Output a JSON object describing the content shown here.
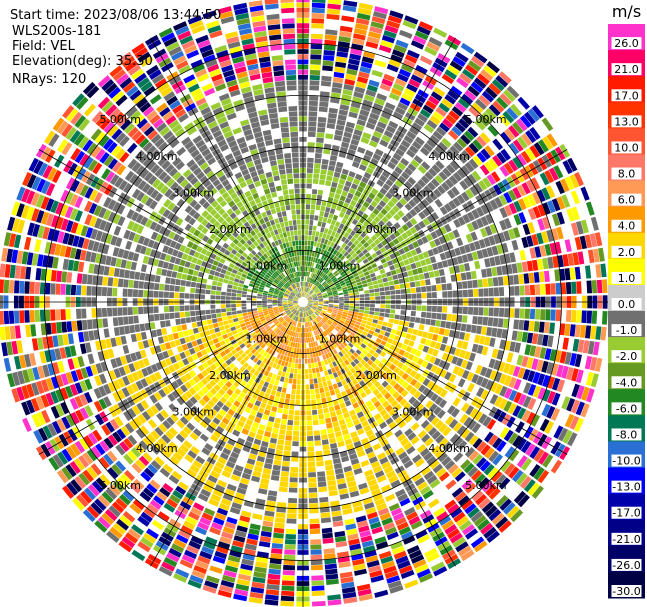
{
  "header": {
    "start_time": "Start time: 2023/08/06 13:44:50",
    "instrument": "WLS200s-181",
    "field": "Field: VEL",
    "elevation": "Elevation(deg): 35.30",
    "nrays": "NRays: 120"
  },
  "chart_data": {
    "type": "heatmap",
    "subtype": "polar-ppi",
    "field": "VEL",
    "units": "m/s",
    "elevation_deg": 35.3,
    "n_rays": 120,
    "range_rings_km": [
      1.0,
      2.0,
      3.0,
      4.0,
      5.0
    ],
    "max_range_km": 5.9,
    "ring_labels": [
      "1.00km",
      "2.00km",
      "3.00km",
      "4.00km",
      "5.00km"
    ],
    "colorbar": {
      "unit_label": "m/s",
      "tick_labels": [
        "26.0",
        "21.0",
        "17.0",
        "13.0",
        "10.0",
        "8.0",
        "6.0",
        "4.0",
        "2.0",
        "1.0",
        "0.0",
        "-1.0",
        "-2.0",
        "-4.0",
        "-6.0",
        "-8.0",
        "-10.0",
        "-13.0",
        "-17.0",
        "-21.0",
        "-26.0",
        "-30.0"
      ],
      "bin_colors": [
        "#ff33cc",
        "#ff0066",
        "#ff1a00",
        "#ff3300",
        "#ff5533",
        "#ff7766",
        "#ff9955",
        "#ff9900",
        "#ffd700",
        "#ffff00",
        "#cccccc",
        "#707070",
        "#99cc33",
        "#669922",
        "#228822",
        "#007755",
        "#2a6fd4",
        "#0000ff",
        "#0000aa",
        "#000088",
        "#000066",
        "#000044"
      ]
    },
    "pattern": {
      "center_near_range_km": 1.2,
      "north_sector_values_ms": [
        -6.0,
        -2.0,
        -1.0
      ],
      "south_sector_values_ms": [
        6.0,
        4.0,
        2.0
      ],
      "noise_range_km": 4.3
    }
  }
}
